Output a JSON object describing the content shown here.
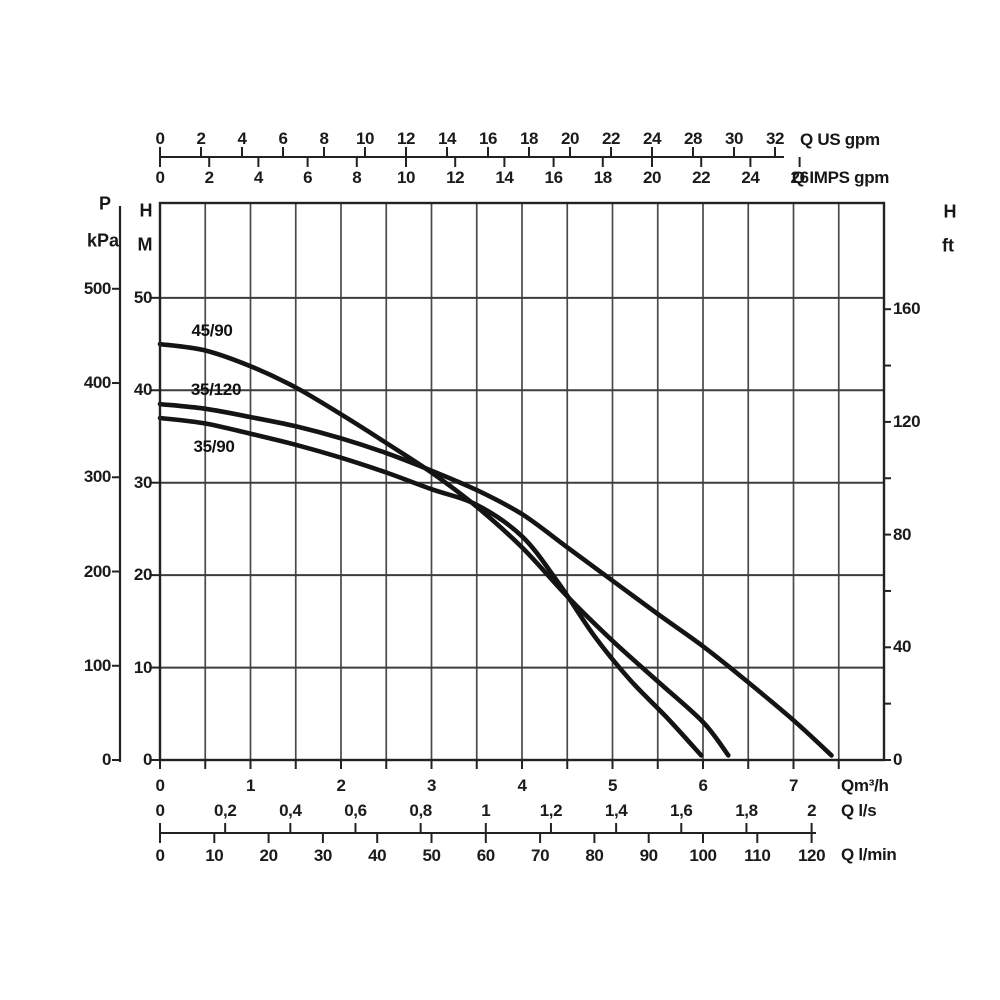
{
  "chart_data": {
    "type": "line",
    "title": "",
    "x_unit_primary": "m3/h",
    "y_unit_primary": "M",
    "xlim_m3h": [
      0,
      8
    ],
    "ylim_m": [
      0,
      60.2
    ],
    "grid": "on",
    "axes": {
      "us_gpm": {
        "unit": "Q US gpm",
        "labels": [
          "0",
          "2",
          "4",
          "6",
          "8",
          "10",
          "12",
          "14",
          "16",
          "18",
          "20",
          "22",
          "24",
          "28",
          "30",
          "32"
        ]
      },
      "imps_gpm": {
        "unit": "Q IMPS gpm",
        "labels": [
          "0",
          "2",
          "4",
          "6",
          "8",
          "10",
          "12",
          "14",
          "16",
          "18",
          "20",
          "22",
          "24",
          "26"
        ]
      },
      "m3h": {
        "unit": "Qm³/h",
        "labels": [
          "0",
          "1",
          "2",
          "3",
          "4",
          "5",
          "6",
          "7"
        ]
      },
      "l_s": {
        "unit": "Q l/s",
        "labels": [
          "0",
          "0,2",
          "0,4",
          "0,6",
          "0,8",
          "1",
          "1,2",
          "1,4",
          "1,6",
          "1,8",
          "2"
        ]
      },
      "l_min": {
        "unit": "Q l/min",
        "labels": [
          "0",
          "10",
          "20",
          "30",
          "40",
          "50",
          "60",
          "70",
          "80",
          "90",
          "100",
          "110",
          "120"
        ]
      },
      "head_m": {
        "title": "H",
        "unit": "M",
        "labels": [
          "0",
          "10",
          "20",
          "30",
          "40",
          "50"
        ]
      },
      "pressure_kpa": {
        "title": "P",
        "unit": "kPa",
        "labels": [
          "0",
          "100",
          "200",
          "300",
          "400",
          "500"
        ]
      },
      "head_ft": {
        "title": "H",
        "unit": "ft",
        "labels": [
          "0",
          "40",
          "80",
          "120",
          "160"
        ]
      }
    },
    "series": [
      {
        "name": "45/90",
        "points": [
          [
            0,
            45
          ],
          [
            0.5,
            44.3
          ],
          [
            1,
            42.6
          ],
          [
            1.5,
            40.3
          ],
          [
            2,
            37.4
          ],
          [
            2.5,
            34.3
          ],
          [
            3,
            31.1
          ],
          [
            3.5,
            27.4
          ],
          [
            4,
            23
          ],
          [
            4.5,
            17.7
          ],
          [
            5,
            12.9
          ],
          [
            5.5,
            8.5
          ],
          [
            6,
            4.1
          ],
          [
            6.28,
            0.5
          ]
        ]
      },
      {
        "name": "35/120",
        "points": [
          [
            0,
            38.5
          ],
          [
            0.5,
            38
          ],
          [
            1,
            37.1
          ],
          [
            1.5,
            36.1
          ],
          [
            2,
            34.8
          ],
          [
            2.5,
            33.2
          ],
          [
            3,
            31.3
          ],
          [
            3.5,
            29.2
          ],
          [
            4,
            26.6
          ],
          [
            4.5,
            23
          ],
          [
            5,
            19.4
          ],
          [
            5.5,
            15.8
          ],
          [
            6,
            12.3
          ],
          [
            6.5,
            8.4
          ],
          [
            7,
            4.3
          ],
          [
            7.42,
            0.5
          ]
        ]
      },
      {
        "name": "35/90",
        "points": [
          [
            0,
            37
          ],
          [
            0.5,
            36.4
          ],
          [
            1,
            35.3
          ],
          [
            1.5,
            34.1
          ],
          [
            2,
            32.7
          ],
          [
            2.5,
            31.1
          ],
          [
            3,
            29.3
          ],
          [
            3.5,
            27.6
          ],
          [
            4,
            24.2
          ],
          [
            4.4,
            19.2
          ],
          [
            4.8,
            13.4
          ],
          [
            5.2,
            8.6
          ],
          [
            5.6,
            4.6
          ],
          [
            5.98,
            0.5
          ]
        ]
      }
    ],
    "colors": {
      "curve": "#141414",
      "grid": "#4a4a4a",
      "frame": "#222222",
      "text": "#1b1b1b",
      "background": "#ffffff"
    }
  }
}
